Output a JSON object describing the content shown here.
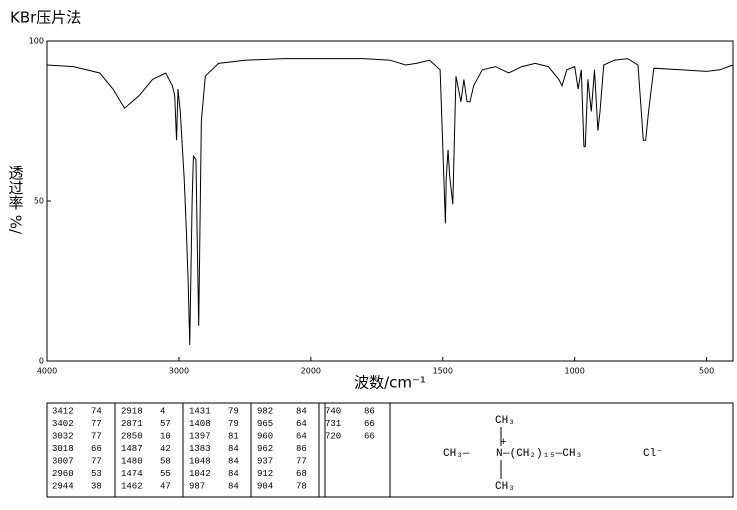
{
  "chart_data": {
    "type": "line",
    "title": "KBr压片法",
    "xlabel": "波数/cm⁻¹",
    "ylabel": "透过率 %/",
    "xlim": [
      4000,
      400
    ],
    "ylim": [
      0,
      100
    ],
    "x_scale": {
      "break": 2000,
      "factor": 2
    },
    "xticks": [
      4000,
      3000,
      2000,
      1500,
      1000,
      500
    ],
    "yticks": [
      0,
      50,
      100
    ],
    "grid": false,
    "series": [
      {
        "name": "spectrum",
        "color": "#000000",
        "x": [
          4000,
          3800,
          3600,
          3500,
          3412,
          3300,
          3200,
          3100,
          3050,
          3032,
          3018,
          3007,
          2990,
          2960,
          2944,
          2930,
          2918,
          2900,
          2890,
          2871,
          2860,
          2850,
          2830,
          2800,
          2700,
          2500,
          2200,
          2000,
          1800,
          1700,
          1640,
          1600,
          1550,
          1510,
          1490,
          1487,
          1480,
          1474,
          1462,
          1450,
          1431,
          1420,
          1408,
          1397,
          1383,
          1350,
          1300,
          1250,
          1200,
          1150,
          1100,
          1060,
          1048,
          1030,
          1000,
          987,
          975,
          965,
          960,
          950,
          937,
          925,
          912,
          904,
          890,
          850,
          800,
          760,
          740,
          731,
          720,
          700,
          600,
          500,
          450,
          400
        ],
        "values": [
          92.5,
          92,
          90,
          85,
          79,
          83,
          88,
          90,
          86,
          83,
          69,
          85,
          78,
          57,
          41,
          25,
          5,
          50,
          64,
          63,
          35,
          11,
          75,
          89,
          93,
          94,
          94.5,
          94.5,
          94.5,
          94,
          92.5,
          93,
          94,
          91,
          43,
          57,
          66,
          58,
          49,
          89,
          81,
          88,
          81,
          81,
          86,
          91,
          92,
          90,
          92,
          93,
          92,
          88,
          86,
          91,
          92,
          85,
          91,
          67,
          67,
          88,
          78,
          91,
          72,
          78,
          92.5,
          94,
          94.5,
          92.5,
          69,
          69,
          78,
          91.5,
          91,
          90.5,
          91,
          92.5
        ]
      }
    ]
  },
  "peak_table": [
    [
      [
        3412,
        74
      ],
      [
        3402,
        77
      ],
      [
        3032,
        77
      ],
      [
        3018,
        66
      ],
      [
        3007,
        77
      ],
      [
        2960,
        53
      ],
      [
        2944,
        38
      ]
    ],
    [
      [
        2918,
        4
      ],
      [
        2871,
        57
      ],
      [
        2850,
        10
      ],
      [
        1487,
        42
      ],
      [
        1480,
        58
      ],
      [
        1474,
        55
      ],
      [
        1462,
        47
      ]
    ],
    [
      [
        1431,
        79
      ],
      [
        1408,
        79
      ],
      [
        1397,
        81
      ],
      [
        1383,
        84
      ],
      [
        1048,
        84
      ],
      [
        1042,
        84
      ],
      [
        987,
        84
      ]
    ],
    [
      [
        982,
        84
      ],
      [
        965,
        64
      ],
      [
        960,
        64
      ],
      [
        962,
        86
      ],
      [
        937,
        77
      ],
      [
        912,
        68
      ],
      [
        904,
        78
      ]
    ],
    [
      [
        740,
        86
      ],
      [
        731,
        66
      ],
      [
        720,
        66
      ]
    ]
  ],
  "structure": {
    "top": "CH₃",
    "left": "CH₃—",
    "center": "N",
    "charge": "+",
    "chain": "—(CH₂)₁₅—CH₃",
    "bottom": "CH₃",
    "anion": "Cl⁻"
  }
}
